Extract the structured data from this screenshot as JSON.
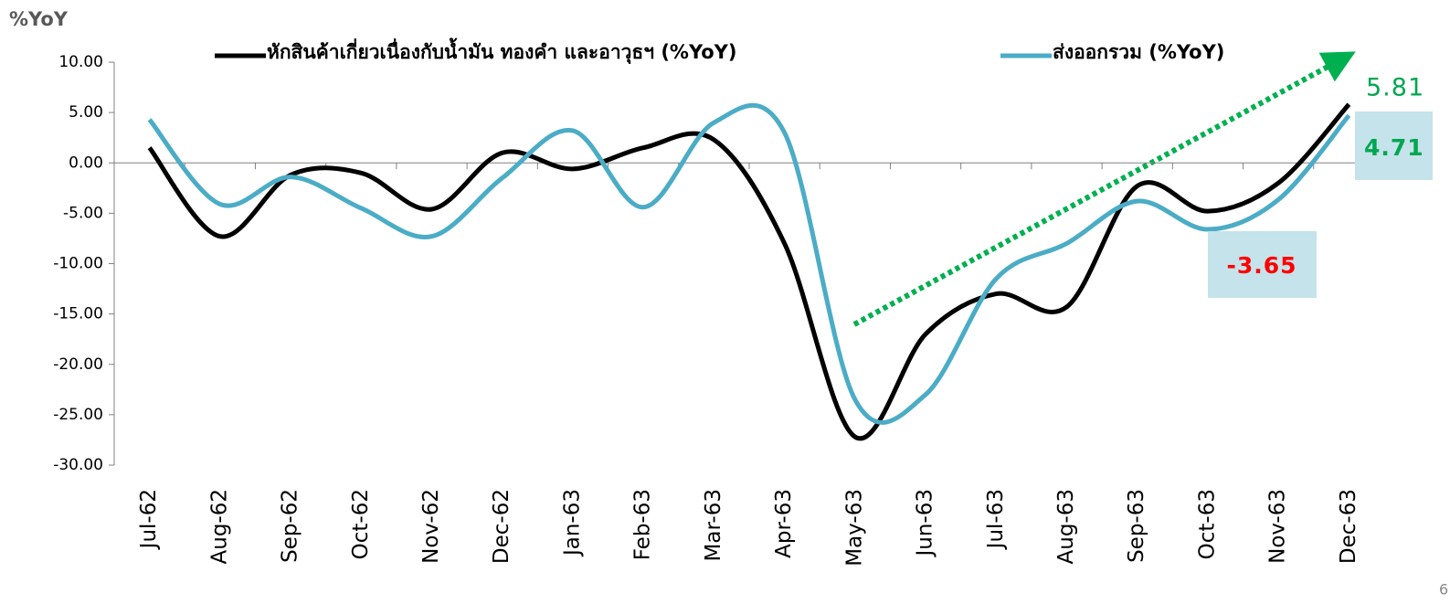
{
  "chart_data": {
    "type": "line",
    "y_axis_label": "%YoY",
    "categories": [
      "Jul-62",
      "Aug-62",
      "Sep-62",
      "Oct-62",
      "Nov-62",
      "Dec-62",
      "Jan-63",
      "Feb-63",
      "Mar-63",
      "Apr-63",
      "May-63",
      "Jun-63",
      "Jul-63",
      "Aug-63",
      "Sep-63",
      "Oct-63",
      "Nov-63",
      "Dec-63"
    ],
    "series": [
      {
        "name": "หักสินค้าเกี่ยวเนื่องกับน้ำมัน ทองคำ และอาวุธฯ (%YoY)",
        "color": "#000000",
        "values": [
          1.5,
          -7.3,
          -1.2,
          -1.0,
          -4.6,
          1.0,
          -0.6,
          1.5,
          2.3,
          -8.0,
          -27.2,
          -17.0,
          -13.0,
          -14.3,
          -2.3,
          -4.8,
          -2.0,
          5.81
        ]
      },
      {
        "name": "ส่งออกรวม (%YoY)",
        "color": "#4bacc6",
        "values": [
          4.3,
          -4.1,
          -1.4,
          -4.5,
          -7.3,
          -1.5,
          3.2,
          -4.4,
          4.0,
          3.0,
          -23.5,
          -23.0,
          -11.5,
          -8.0,
          -3.8,
          -6.6,
          -3.65,
          4.71
        ]
      }
    ],
    "value_labels": [
      {
        "series": 0,
        "index": 17,
        "label": "5.81",
        "color": "#00a651"
      },
      {
        "series": 1,
        "index": 17,
        "label": "4.71",
        "color": "#00a651"
      },
      {
        "series": 1,
        "index": 16,
        "label": "-3.65",
        "color": "#ff0000"
      }
    ],
    "ylim": [
      -30,
      10
    ],
    "yticks": [
      {
        "value": -30,
        "label": "-30.00"
      },
      {
        "value": -25,
        "label": "-25.00"
      },
      {
        "value": -20,
        "label": "-20.00"
      },
      {
        "value": -15,
        "label": "-15.00"
      },
      {
        "value": -10,
        "label": "-10.00"
      },
      {
        "value": -5,
        "label": "-5.00"
      },
      {
        "value": 0,
        "label": "0.00"
      },
      {
        "value": 5,
        "label": "5.00"
      },
      {
        "value": 10,
        "label": "10.00"
      }
    ],
    "grid": false
  },
  "page_number": "6"
}
